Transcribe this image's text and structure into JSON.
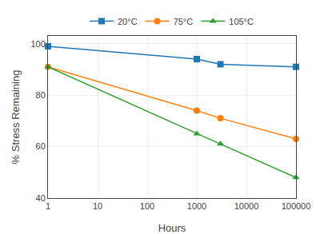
{
  "chart_data": {
    "type": "line",
    "x": [
      1,
      1000,
      3000,
      100000
    ],
    "series": [
      {
        "name": "20°C",
        "values": [
          99,
          94,
          92,
          91
        ],
        "marker": "square"
      },
      {
        "name": "75°C",
        "values": [
          91,
          74,
          71,
          63
        ],
        "marker": "circle"
      },
      {
        "name": "105°C",
        "values": [
          91,
          65,
          61,
          48
        ],
        "marker": "triangle-up"
      }
    ],
    "xlabel": "Hours",
    "ylabel": "% Stress Remaining",
    "xlim": [
      1,
      100000
    ],
    "ylim": [
      40,
      103
    ],
    "xticks": [
      1,
      10,
      100,
      1000,
      10000,
      100000
    ],
    "yticks": [
      40,
      60,
      80,
      100
    ],
    "log": "x",
    "grid": true,
    "legend": "top"
  }
}
